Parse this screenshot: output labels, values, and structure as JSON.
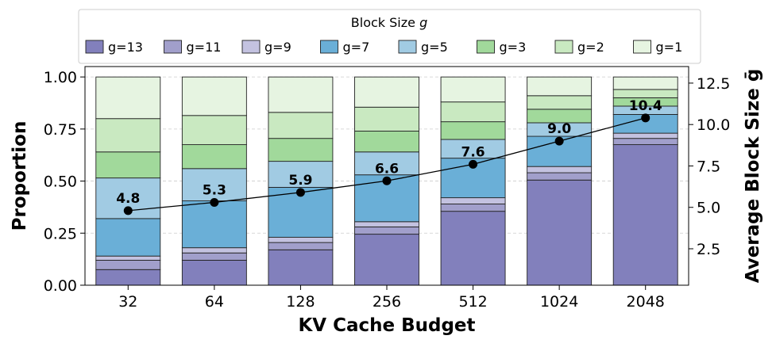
{
  "chart_data": {
    "type": "bar",
    "stacked": true,
    "xlabel": "KV Cache Budget",
    "ylabel": "Proportion",
    "y2label": "Average Block Size ḡ",
    "categories": [
      "32",
      "64",
      "128",
      "256",
      "512",
      "1024",
      "2048"
    ],
    "ylim": [
      0,
      1.05
    ],
    "yticks": [
      "0.00",
      "0.25",
      "0.50",
      "0.75",
      "1.00"
    ],
    "y2lim": [
      0.3,
      13.5
    ],
    "y2ticks": [
      "2.5",
      "5.0",
      "7.5",
      "10.0",
      "12.5"
    ],
    "legend": {
      "title_prefix": "Block Size ",
      "title_var": "g",
      "position": "top-center"
    },
    "series": [
      {
        "name": "g=13",
        "color": "#8280bc",
        "values": [
          0.075,
          0.12,
          0.17,
          0.245,
          0.355,
          0.505,
          0.675
        ]
      },
      {
        "name": "g=11",
        "color": "#a19fcb",
        "values": [
          0.045,
          0.035,
          0.035,
          0.035,
          0.035,
          0.035,
          0.03
        ]
      },
      {
        "name": "g=9",
        "color": "#c3c2e0",
        "values": [
          0.02,
          0.025,
          0.025,
          0.025,
          0.03,
          0.03,
          0.025
        ]
      },
      {
        "name": "g=7",
        "color": "#6aafd7",
        "values": [
          0.18,
          0.225,
          0.24,
          0.225,
          0.19,
          0.145,
          0.09
        ]
      },
      {
        "name": "g=5",
        "color": "#a1cbe3",
        "values": [
          0.195,
          0.155,
          0.125,
          0.11,
          0.09,
          0.065,
          0.04
        ]
      },
      {
        "name": "g=3",
        "color": "#a1d99b",
        "values": [
          0.125,
          0.115,
          0.11,
          0.1,
          0.085,
          0.065,
          0.04
        ]
      },
      {
        "name": "g=2",
        "color": "#c9e9c1",
        "values": [
          0.16,
          0.14,
          0.125,
          0.115,
          0.095,
          0.065,
          0.04
        ]
      },
      {
        "name": "g=1",
        "color": "#e6f4e1",
        "values": [
          0.2,
          0.185,
          0.17,
          0.145,
          0.12,
          0.09,
          0.06
        ]
      }
    ],
    "line": {
      "name": "Average Block Size",
      "axis": "right",
      "values": [
        4.8,
        5.3,
        5.9,
        6.6,
        7.6,
        9.0,
        10.4
      ],
      "labels": [
        "4.8",
        "5.3",
        "5.9",
        "6.6",
        "7.6",
        "9.0",
        "10.4"
      ]
    }
  }
}
